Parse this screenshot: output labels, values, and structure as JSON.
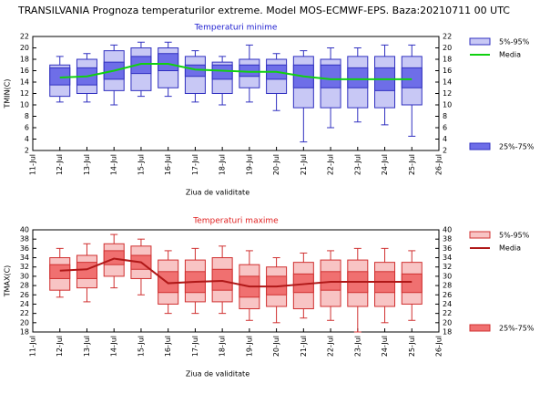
{
  "title": "TRANSILVANIA  Prognoza temperaturilor extreme.  Model MOS-ECMWF-EPS. Baza:20210711 00 UTC",
  "chart_data": [
    {
      "type": "box",
      "subtitle": "Temperaturi minime",
      "subtitle_color": "#2020d0",
      "ylabel": "TMIN(C)",
      "xlabel": "Ziua de validitate",
      "categories": [
        "11-Jul",
        "12-Jul",
        "13-Jul",
        "14-Jul",
        "15-Jul",
        "16-Jul",
        "17-Jul",
        "18-Jul",
        "19-Jul",
        "20-Jul",
        "21-Jul",
        "22-Jul",
        "23-Jul",
        "24-Jul",
        "25-Jul",
        "26-Jul"
      ],
      "ylim": [
        2,
        22
      ],
      "yticks": [
        2,
        4,
        6,
        8,
        10,
        12,
        14,
        16,
        18,
        20,
        22
      ],
      "whiskers": {
        "color": "#3030c0",
        "low": [
          null,
          10.5,
          10.5,
          10,
          11.5,
          11.5,
          10.5,
          10,
          10.5,
          9,
          3.5,
          6,
          7,
          6.5,
          4.5,
          null
        ],
        "high": [
          null,
          18.5,
          19,
          20.5,
          21,
          21,
          19.5,
          18.5,
          20.5,
          19,
          19.5,
          20,
          20,
          20.5,
          20.5,
          null
        ]
      },
      "outer": {
        "name": "5%-95%",
        "color": "#c8c8f5",
        "stroke": "#3030c0",
        "low": [
          null,
          11.5,
          12,
          12.5,
          12.5,
          13,
          12,
          12,
          13,
          12,
          9.5,
          9.5,
          9.5,
          9.5,
          10,
          null
        ],
        "high": [
          null,
          17,
          18,
          19.5,
          20,
          20,
          18.5,
          17.5,
          18,
          18,
          18.5,
          18,
          18.5,
          18.5,
          18.5,
          null
        ]
      },
      "inner": {
        "name": "25%-75%",
        "color": "#6e6ee8",
        "stroke": "#3030c0",
        "low": [
          null,
          13.5,
          13.5,
          14.5,
          15.5,
          16,
          15,
          14.5,
          15,
          14.5,
          13,
          13,
          13,
          12.5,
          13,
          null
        ],
        "high": [
          null,
          16.5,
          16.5,
          17.5,
          18.5,
          19,
          17,
          17,
          17,
          17,
          17,
          17,
          16.5,
          16.5,
          16.5,
          null
        ]
      },
      "median": {
        "name": "Media",
        "color": "#10d010",
        "values": [
          null,
          14.8,
          15,
          16,
          17.2,
          17.2,
          16.2,
          16,
          15.8,
          15.8,
          15,
          14.5,
          14.5,
          14.5,
          14.5,
          null
        ]
      }
    },
    {
      "type": "box",
      "subtitle": "Temperaturi maxime",
      "subtitle_color": "#e02020",
      "ylabel": "TMAX(C)",
      "xlabel": "Ziua de validitate",
      "categories": [
        "11-Jul",
        "12-Jul",
        "13-Jul",
        "14-Jul",
        "15-Jul",
        "16-Jul",
        "17-Jul",
        "18-Jul",
        "19-Jul",
        "20-Jul",
        "21-Jul",
        "22-Jul",
        "23-Jul",
        "24-Jul",
        "25-Jul",
        "26-Jul"
      ],
      "ylim": [
        18,
        40
      ],
      "yticks": [
        18,
        20,
        22,
        24,
        26,
        28,
        30,
        32,
        34,
        36,
        38,
        40
      ],
      "whiskers": {
        "color": "#d03030",
        "low": [
          null,
          25.5,
          24.5,
          27.5,
          26,
          22,
          22,
          22,
          20.5,
          20,
          21,
          20.5,
          18,
          20,
          20.5,
          null
        ],
        "high": [
          null,
          36,
          37,
          39,
          38,
          35.5,
          36,
          36.5,
          35.5,
          34,
          35,
          35.5,
          36,
          36,
          35.5,
          null
        ]
      },
      "outer": {
        "name": "5%-95%",
        "color": "#f8c4c4",
        "stroke": "#d03030",
        "low": [
          null,
          27,
          27.5,
          30,
          29.5,
          24,
          24.5,
          24.5,
          23,
          23.5,
          23,
          23.5,
          23.5,
          23.5,
          24,
          null
        ],
        "high": [
          null,
          34,
          34.5,
          37,
          36.5,
          33.5,
          33.5,
          34,
          32.5,
          32,
          33,
          33.5,
          33.5,
          33,
          33,
          null
        ]
      },
      "inner": {
        "name": "25%-75%",
        "color": "#f07070",
        "stroke": "#d03030",
        "low": [
          null,
          29.5,
          29.5,
          32.5,
          31.5,
          26.5,
          26.5,
          27,
          25.5,
          26,
          26.5,
          27,
          26.5,
          26.5,
          26.5,
          null
        ],
        "high": [
          null,
          32.5,
          33,
          35.5,
          34.5,
          31,
          31,
          31.5,
          30,
          30,
          30.5,
          31,
          31,
          31,
          30.5,
          null
        ]
      },
      "median": {
        "name": "Media",
        "color": "#b01818",
        "values": [
          null,
          31.2,
          31.5,
          33.8,
          33,
          28.5,
          28.8,
          29,
          27.8,
          27.8,
          28.3,
          28.8,
          28.8,
          28.8,
          28.8,
          null
        ]
      }
    }
  ]
}
